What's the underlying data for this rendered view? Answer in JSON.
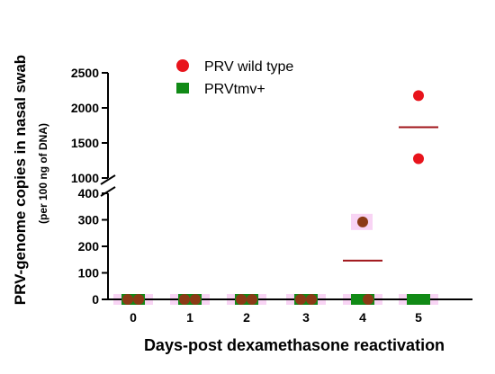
{
  "chart_data": {
    "type": "scatter",
    "xlabel": "Days-post dexamethasone reactivation",
    "ylabel": "PRV-genome copies in nasal swab",
    "ylabel_sub": "(per 100 ng of DNA)",
    "categories": [
      "0",
      "1",
      "2",
      "3",
      "4",
      "5"
    ],
    "y_axis_break": true,
    "ylim_lower": [
      0,
      400
    ],
    "ylim_upper": [
      1000,
      2500
    ],
    "yticks_lower": [
      "0",
      "100",
      "200",
      "300",
      "400"
    ],
    "yticks_upper": [
      "1000",
      "1500",
      "2000",
      "2500"
    ],
    "legend_position": "top-center",
    "series": [
      {
        "name": "PRV wild type",
        "marker": "circle",
        "color": "#e8141c",
        "points": [
          {
            "x": "0",
            "y": 0
          },
          {
            "x": "0",
            "y": 0
          },
          {
            "x": "1",
            "y": 0
          },
          {
            "x": "1",
            "y": 0
          },
          {
            "x": "2",
            "y": 0
          },
          {
            "x": "2",
            "y": 0
          },
          {
            "x": "3",
            "y": 0
          },
          {
            "x": "3",
            "y": 0
          },
          {
            "x": "4",
            "y": 292
          },
          {
            "x": "4",
            "y": 0
          },
          {
            "x": "5",
            "y": 2175
          },
          {
            "x": "5",
            "y": 1275
          }
        ],
        "means": [
          {
            "x": "4",
            "y": 146
          },
          {
            "x": "5",
            "y": 1725
          }
        ]
      },
      {
        "name": "PRVtmv+",
        "marker": "square",
        "color": "#118a16",
        "points": [
          {
            "x": "0",
            "y": 0
          },
          {
            "x": "0",
            "y": 0
          },
          {
            "x": "1",
            "y": 0
          },
          {
            "x": "1",
            "y": 0
          },
          {
            "x": "2",
            "y": 0
          },
          {
            "x": "2",
            "y": 0
          },
          {
            "x": "3",
            "y": 0
          },
          {
            "x": "3",
            "y": 0
          },
          {
            "x": "4",
            "y": 0
          },
          {
            "x": "4",
            "y": 0
          },
          {
            "x": "5",
            "y": 0
          },
          {
            "x": "5",
            "y": 0
          }
        ]
      }
    ],
    "overlap_color": "#8b3a16",
    "mean_line_color": "#a0151a",
    "highlight_color": "#f5c2f0"
  }
}
